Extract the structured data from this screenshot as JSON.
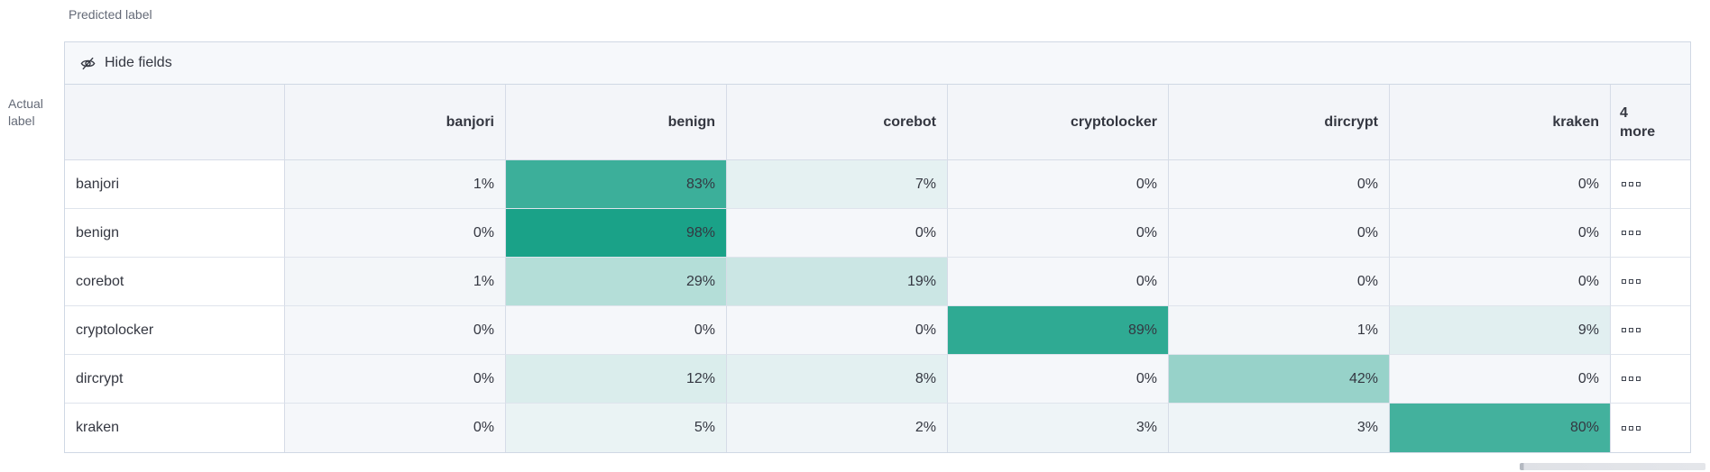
{
  "axis": {
    "predicted": "Predicted label",
    "actual_line1": "Actual",
    "actual_line2": "label"
  },
  "toolbar": {
    "hide_fields": "Hide fields",
    "icon": "eye-closed-icon"
  },
  "matrix": {
    "columns": [
      "banjori",
      "benign",
      "corebot",
      "cryptolocker",
      "dircrypt",
      "kraken"
    ],
    "more_column": {
      "line1": "4",
      "line2": "more",
      "cell_icon": "boxes-horizontal-icon"
    },
    "value_suffix": "%",
    "rows": [
      {
        "label": "banjori",
        "values": [
          1,
          83,
          7,
          0,
          0,
          0
        ]
      },
      {
        "label": "benign",
        "values": [
          0,
          98,
          0,
          0,
          0,
          0
        ]
      },
      {
        "label": "corebot",
        "values": [
          1,
          29,
          19,
          0,
          0,
          0
        ]
      },
      {
        "label": "cryptolocker",
        "values": [
          0,
          0,
          0,
          89,
          1,
          9
        ]
      },
      {
        "label": "dircrypt",
        "values": [
          0,
          12,
          8,
          0,
          42,
          0
        ]
      },
      {
        "label": "kraken",
        "values": [
          0,
          5,
          2,
          3,
          3,
          80
        ]
      }
    ]
  },
  "colors": {
    "heat_teal": "#16a086",
    "heat_base": "#f5f7fa",
    "border": "#d3dae6",
    "header_bg": "#f3f5f9",
    "toolbar_bg": "#f6f8fb",
    "text": "#343741",
    "muted_text": "#646a77"
  }
}
